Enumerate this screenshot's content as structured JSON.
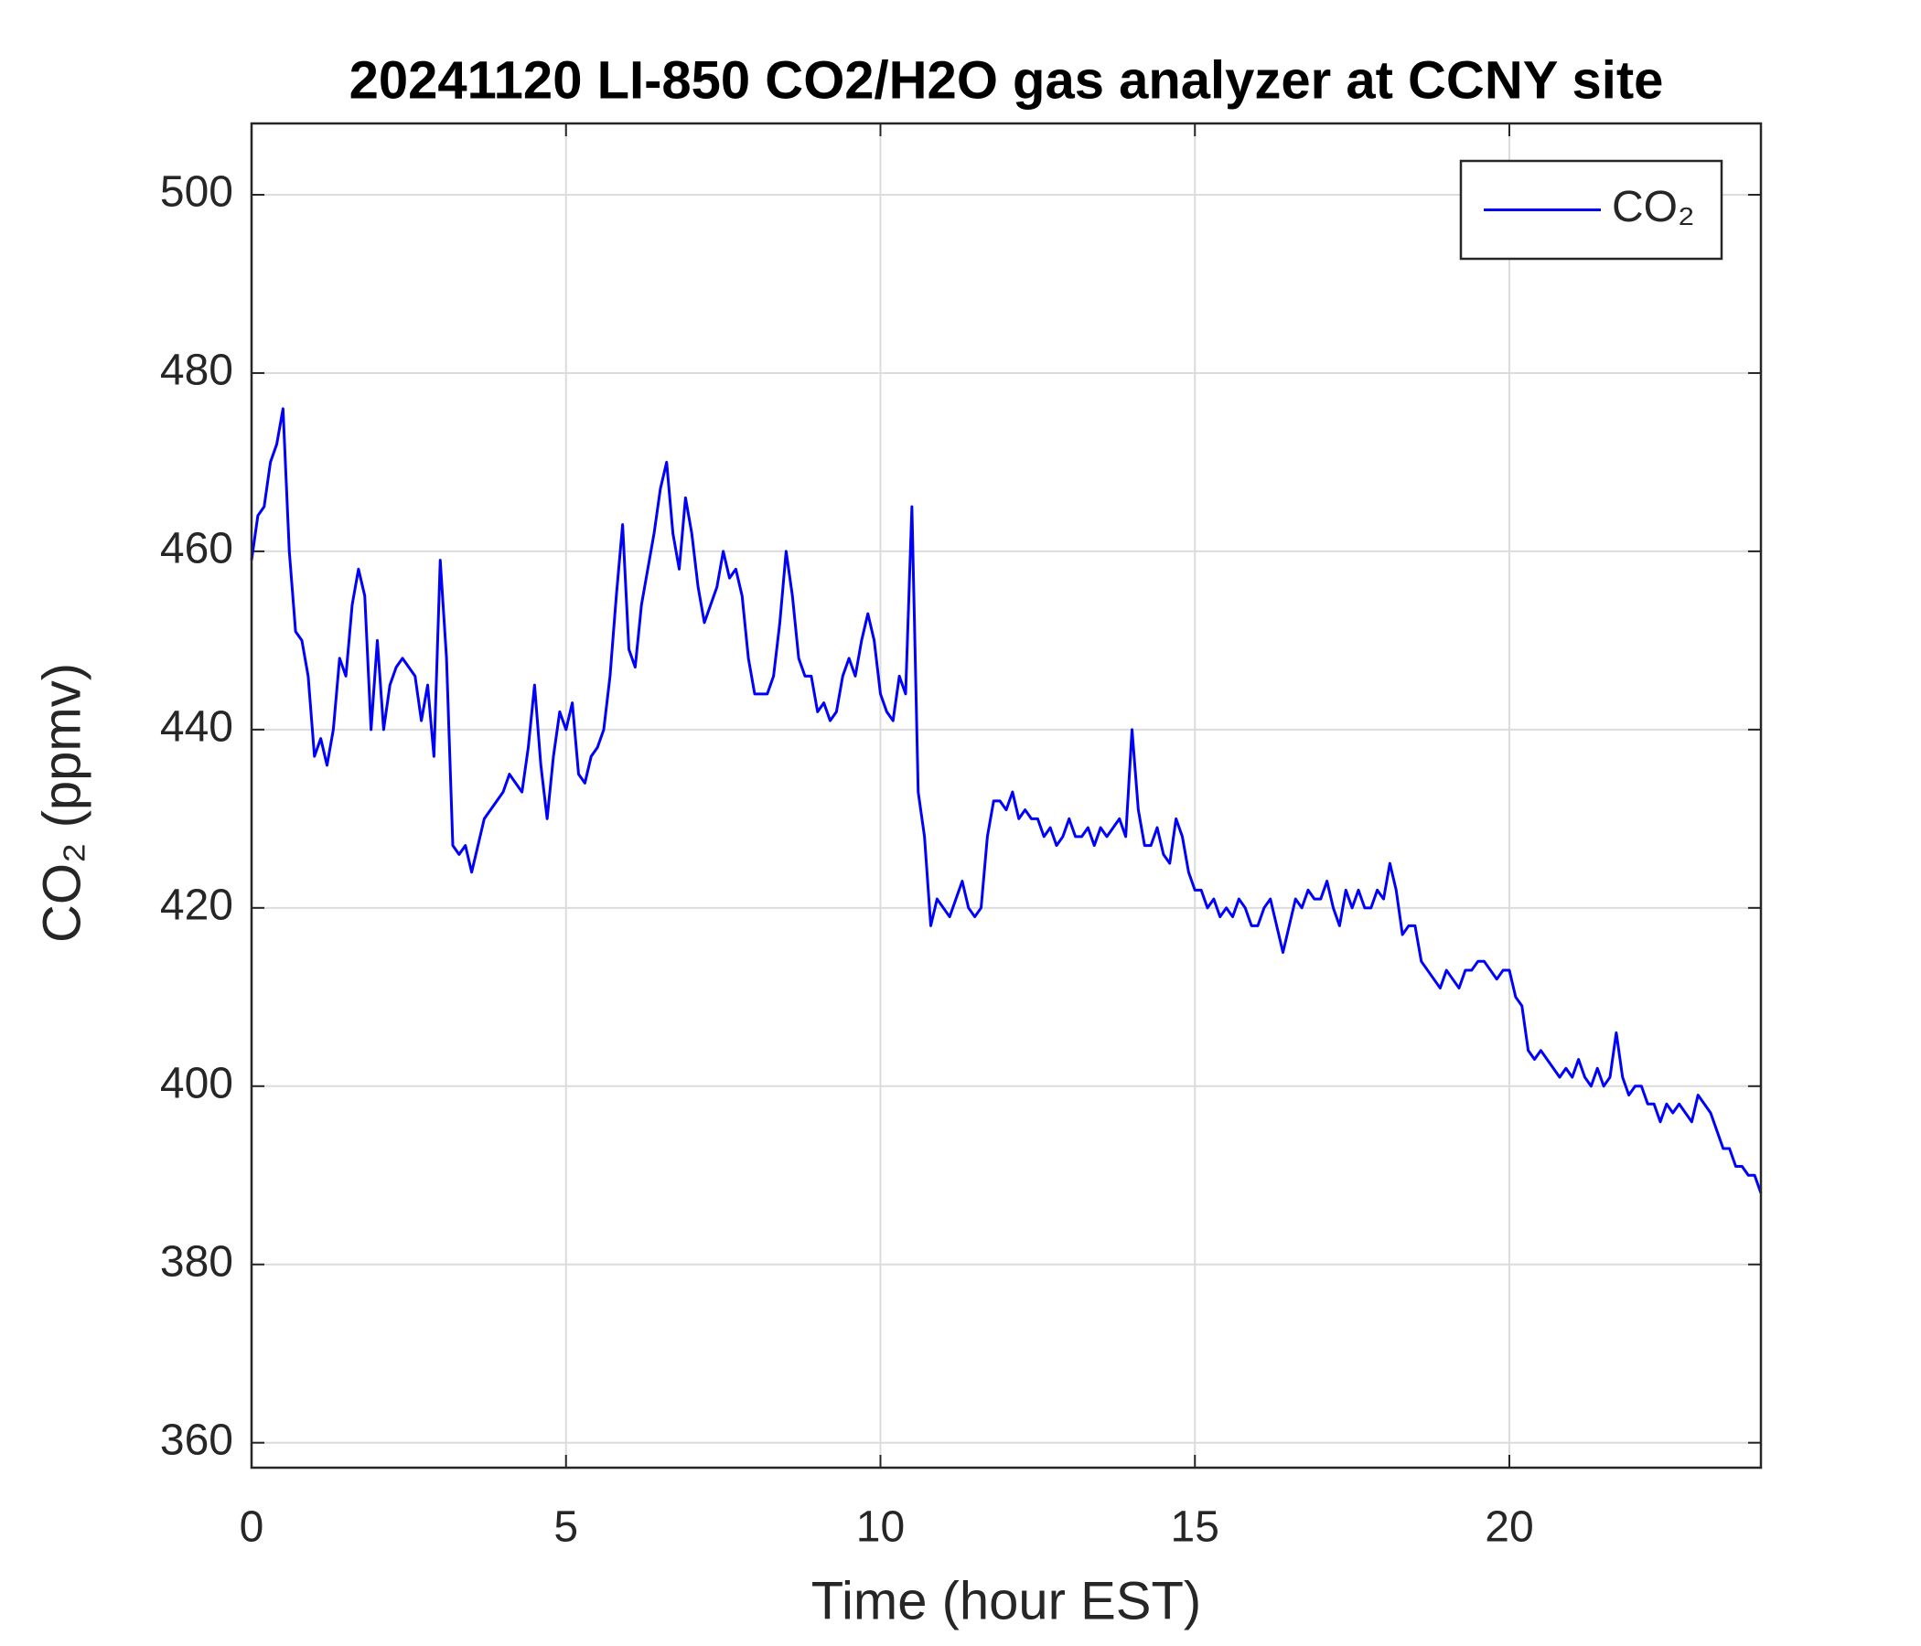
{
  "chart_data": {
    "type": "line",
    "title": "20241120 LI-850 CO2/H2O gas analyzer at CCNY site",
    "x_label": "Time (hour EST)",
    "y_label": "CO₂ (ppmv)",
    "xlim": [
      0,
      24
    ],
    "xticks": [
      0,
      5,
      10,
      15,
      20
    ],
    "ylim": [
      357.2,
      508
    ],
    "yticks": [
      360,
      380,
      400,
      420,
      440,
      460,
      480,
      500
    ],
    "grid": true,
    "legend": "upper right",
    "x": [
      0,
      0.1,
      0.2,
      0.3,
      0.4,
      0.5,
      0.6,
      0.7,
      0.8,
      0.9,
      1,
      1.1,
      1.2,
      1.3,
      1.4,
      1.5,
      1.6,
      1.7,
      1.8,
      1.9,
      2,
      2.1,
      2.2,
      2.3,
      2.4,
      2.5,
      2.6,
      2.7,
      2.8,
      2.9,
      3,
      3.1,
      3.2,
      3.3,
      3.4,
      3.5,
      3.6,
      3.7,
      3.8,
      3.9,
      4,
      4.1,
      4.2,
      4.3,
      4.4,
      4.5,
      4.6,
      4.7,
      4.8,
      4.9,
      5,
      5.1,
      5.2,
      5.3,
      5.4,
      5.5,
      5.6,
      5.7,
      5.8,
      5.9,
      6,
      6.1,
      6.2,
      6.3,
      6.4,
      6.5,
      6.6,
      6.7,
      6.8,
      6.9,
      7,
      7.1,
      7.2,
      7.3,
      7.4,
      7.5,
      7.6,
      7.7,
      7.8,
      7.9,
      8,
      8.1,
      8.2,
      8.3,
      8.4,
      8.5,
      8.6,
      8.7,
      8.8,
      8.9,
      9,
      9.1,
      9.2,
      9.3,
      9.4,
      9.5,
      9.6,
      9.7,
      9.8,
      9.9,
      10,
      10.1,
      10.2,
      10.3,
      10.4,
      10.5,
      10.6,
      10.7,
      10.8,
      10.9,
      11,
      11.1,
      11.2,
      11.3,
      11.4,
      11.5,
      11.6,
      11.7,
      11.8,
      11.9,
      12,
      12.1,
      12.2,
      12.3,
      12.4,
      12.5,
      12.6,
      12.7,
      12.8,
      12.9,
      13,
      13.1,
      13.2,
      13.3,
      13.4,
      13.5,
      13.6,
      13.7,
      13.8,
      13.9,
      14,
      14.1,
      14.2,
      14.3,
      14.4,
      14.5,
      14.6,
      14.7,
      14.8,
      14.9,
      15,
      15.1,
      15.2,
      15.3,
      15.4,
      15.5,
      15.6,
      15.7,
      15.8,
      15.9,
      16,
      16.1,
      16.2,
      16.3,
      16.4,
      16.5,
      16.6,
      16.7,
      16.8,
      16.9,
      17,
      17.1,
      17.2,
      17.3,
      17.4,
      17.5,
      17.6,
      17.7,
      17.8,
      17.9,
      18,
      18.1,
      18.2,
      18.3,
      18.4,
      18.5,
      18.6,
      18.7,
      18.8,
      18.9,
      19,
      19.1,
      19.2,
      19.3,
      19.4,
      19.5,
      19.6,
      19.7,
      19.8,
      19.9,
      20,
      20.1,
      20.2,
      20.3,
      20.4,
      20.5,
      20.6,
      20.7,
      20.8,
      20.9,
      21,
      21.1,
      21.2,
      21.3,
      21.4,
      21.5,
      21.6,
      21.7,
      21.8,
      21.9,
      22,
      22.1,
      22.2,
      22.3,
      22.4,
      22.5,
      22.6,
      22.7,
      22.8,
      22.9,
      23,
      23.1,
      23.2,
      23.3,
      23.4,
      23.5,
      23.6,
      23.7,
      23.8,
      23.9,
      24
    ],
    "series": [
      {
        "name": "CO₂",
        "color": "#0000ff",
        "values": [
          459,
          464,
          465,
          470,
          472,
          476,
          460,
          451,
          450,
          446,
          437,
          439,
          436,
          440,
          448,
          446,
          454,
          458,
          455,
          440,
          450,
          440,
          445,
          447,
          448,
          447,
          446,
          441,
          445,
          437,
          459,
          448,
          427,
          426,
          427,
          424,
          427,
          430,
          431,
          432,
          433,
          435,
          434,
          433,
          438,
          445,
          436,
          430,
          437,
          442,
          440,
          443,
          435,
          434,
          437,
          438,
          440,
          446,
          455,
          463,
          449,
          447,
          454,
          458,
          462,
          467,
          470,
          462,
          458,
          466,
          462,
          456,
          452,
          454,
          456,
          460,
          457,
          458,
          455,
          448,
          444,
          444,
          444,
          446,
          452,
          460,
          455,
          448,
          446,
          446,
          442,
          443,
          441,
          442,
          446,
          448,
          446,
          450,
          453,
          450,
          444,
          442,
          441,
          446,
          444,
          465,
          433,
          428,
          418,
          421,
          420,
          419,
          421,
          423,
          420,
          419,
          420,
          428,
          432,
          432,
          431,
          433,
          430,
          431,
          430,
          430,
          428,
          429,
          427,
          428,
          430,
          428,
          428,
          429,
          427,
          429,
          428,
          429,
          430,
          428,
          440,
          431,
          427,
          427,
          429,
          426,
          425,
          430,
          428,
          424,
          422,
          422,
          420,
          421,
          419,
          420,
          419,
          421,
          420,
          418,
          418,
          420,
          421,
          418,
          415,
          418,
          421,
          420,
          422,
          421,
          421,
          423,
          420,
          418,
          422,
          420,
          422,
          420,
          420,
          422,
          421,
          425,
          422,
          417,
          418,
          418,
          414,
          413,
          412,
          411,
          413,
          412,
          411,
          413,
          413,
          414,
          414,
          413,
          412,
          413,
          413,
          410,
          409,
          404,
          403,
          404,
          403,
          402,
          401,
          402,
          401,
          403,
          401,
          400,
          402,
          400,
          401,
          406,
          401,
          399,
          400,
          400,
          398,
          398,
          396,
          398,
          397,
          398,
          397,
          396,
          399,
          398,
          397,
          395,
          393,
          393,
          391,
          391,
          390,
          390,
          388
        ]
      }
    ]
  }
}
